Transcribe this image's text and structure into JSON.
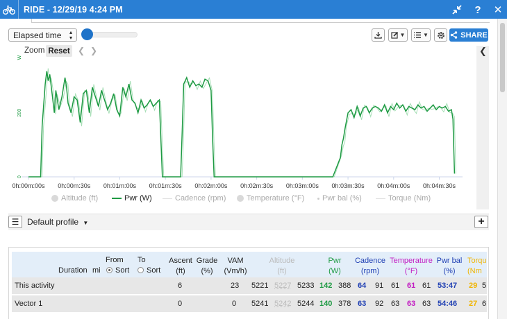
{
  "window": {
    "title": "RIDE - 12/29/19 4:24 PM",
    "icons": [
      "bike-icon",
      "collapse-icon",
      "help-icon",
      "close-icon"
    ],
    "accent": "#2a7fd4"
  },
  "toolbar": {
    "x_axis_select": "Elapsed time",
    "share_label": "SHARE"
  },
  "chart": {
    "zoom_label": "Zoom",
    "reset_label": "Reset"
  },
  "chart_data": {
    "type": "line",
    "ylabel": "W",
    "ylim": [
      0,
      390
    ],
    "yticks": [
      "0",
      "200"
    ],
    "xticks": [
      "0h:00m:00s",
      "0h:00m:30s",
      "0h:01m:00s",
      "0h:01m:30s",
      "0h:02m:00s",
      "0h:02m:30s",
      "0h:03m:00s",
      "0h:03m:30s",
      "0h:04m:00s",
      "0h:04m:30s"
    ],
    "xlim_seconds": [
      0,
      283
    ],
    "legend": [
      "Altitude (ft)",
      "Pwr (W)",
      "Cadence (rpm)",
      "Temperature (°F)",
      "Pwr bal (%)",
      "Torque (Nm)"
    ],
    "series": [
      {
        "name": "Pwr (W)",
        "color": "#1e9a43",
        "x": [
          0,
          8,
          9,
          11,
          12,
          13,
          14,
          16,
          17,
          18,
          20,
          22,
          24,
          25,
          26,
          28,
          30,
          32,
          34,
          36,
          38,
          40,
          42,
          44,
          46,
          48,
          50,
          52,
          54,
          56,
          58,
          60,
          62,
          64,
          66,
          68,
          70,
          72,
          74,
          76,
          78,
          80,
          82,
          84,
          86,
          87,
          88,
          100,
          101,
          102,
          103,
          104,
          106,
          108,
          110,
          112,
          114,
          116,
          118,
          120,
          121,
          122,
          150,
          200,
          205,
          206,
          207,
          208,
          210,
          212,
          214,
          216,
          218,
          220,
          222,
          224,
          226,
          228,
          230,
          232,
          234,
          236,
          238,
          240,
          242,
          244,
          246,
          248,
          250,
          252,
          254,
          256,
          258,
          260,
          262,
          264,
          266,
          268,
          270,
          272,
          274,
          276,
          278,
          279,
          280
        ],
        "y": [
          0,
          0,
          160,
          290,
          330,
          300,
          320,
          240,
          200,
          270,
          210,
          250,
          310,
          280,
          230,
          200,
          250,
          240,
          170,
          260,
          270,
          200,
          280,
          250,
          220,
          270,
          240,
          210,
          230,
          260,
          210,
          190,
          280,
          250,
          290,
          240,
          230,
          200,
          240,
          215,
          225,
          240,
          220,
          230,
          240,
          120,
          0,
          0,
          140,
          290,
          300,
          310,
          280,
          300,
          285,
          290,
          280,
          305,
          300,
          270,
          120,
          0,
          0,
          0,
          60,
          100,
          120,
          150,
          200,
          210,
          185,
          220,
          190,
          215,
          220,
          200,
          215,
          220,
          215,
          205,
          225,
          200,
          220,
          210,
          230,
          215,
          225,
          205,
          220,
          215,
          210,
          225,
          215,
          220,
          205,
          215,
          225,
          210,
          220,
          215,
          220,
          205,
          210,
          180,
          10
        ]
      }
    ]
  },
  "legend_items": [
    {
      "name": "legend-altitude",
      "label": "Altitude (ft)"
    },
    {
      "name": "legend-pwr",
      "label": "Pwr (W)"
    },
    {
      "name": "legend-cadence",
      "label": "Cadence (rpm)"
    },
    {
      "name": "legend-temperature",
      "label": "Temperature (°F)"
    },
    {
      "name": "legend-pwr-bal",
      "label": "Pwr bal (%)"
    },
    {
      "name": "legend-torque",
      "label": "Torque (Nm)"
    }
  ],
  "profile": {
    "label": "Default profile"
  },
  "table": {
    "headers": {
      "duration": "Duration",
      "unit": "mi",
      "from": "From",
      "to": "To",
      "sort": "Sort",
      "ascent": "Ascent",
      "ascent_unit": "(ft)",
      "grade": "Grade",
      "grade_unit": "(%)",
      "vam": "VAM",
      "vam_unit": "(Vm/h)",
      "altitude": "Altitude",
      "altitude_unit": "(ft)",
      "pwr": "Pwr",
      "pwr_unit": "(W)",
      "cadence": "Cadence",
      "cadence_unit": "(rpm)",
      "temperature": "Temperature",
      "temperature_unit": "(°F)",
      "pwr_bal": "Pwr bal",
      "pwr_bal_unit": "(%)",
      "torque": "Torqu",
      "torque_unit": "(Nm"
    },
    "rows": [
      {
        "label": "This activity",
        "ascent": "6",
        "vam": "23",
        "alt_min": "5221",
        "alt_avg": "5227",
        "alt_max": "5233",
        "pwr_avg": "142",
        "pwr_max": "388",
        "cad_avg": "64",
        "cad_max": "91",
        "temp_min": "61",
        "temp_avg": "61",
        "temp_max": "61",
        "bal": "53:47",
        "tq_avg": "29",
        "tq_max": "5"
      },
      {
        "label": "Vector 1",
        "ascent": "0",
        "vam": "0",
        "alt_min": "5241",
        "alt_avg": "5242",
        "alt_max": "5244",
        "pwr_avg": "140",
        "pwr_max": "378",
        "cad_avg": "63",
        "cad_max": "92",
        "temp_min": "63",
        "temp_avg": "63",
        "temp_max": "63",
        "bal": "54:46",
        "tq_avg": "27",
        "tq_max": "6"
      }
    ]
  }
}
